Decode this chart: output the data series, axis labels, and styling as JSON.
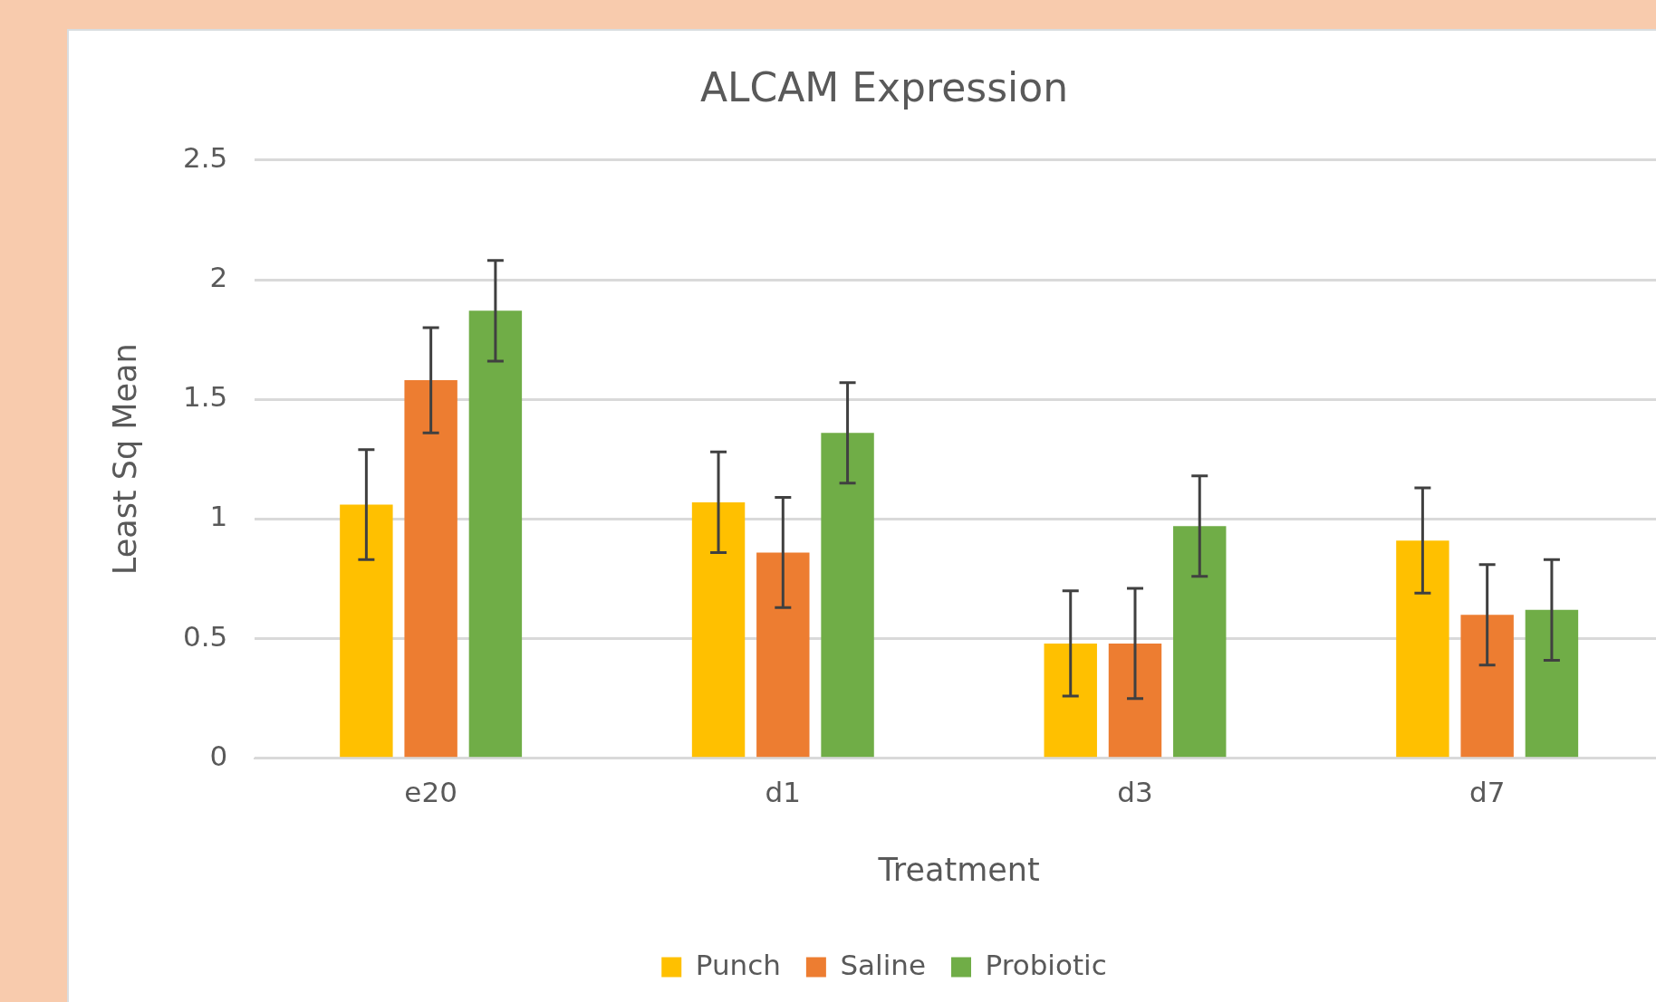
{
  "chart_data": {
    "type": "bar",
    "title": "ALCAM Expression",
    "xlabel": "Treatment",
    "ylabel": "Least Sq Mean",
    "categories": [
      "e20",
      "d1",
      "d3",
      "d7"
    ],
    "series": [
      {
        "name": "Punch",
        "color": "#ffc000",
        "values": [
          1.06,
          1.07,
          0.48,
          0.91
        ],
        "errors": [
          0.23,
          0.21,
          0.22,
          0.22
        ]
      },
      {
        "name": "Saline",
        "color": "#ed7d31",
        "values": [
          1.58,
          0.86,
          0.48,
          0.6
        ],
        "errors": [
          0.22,
          0.23,
          0.23,
          0.21
        ]
      },
      {
        "name": "Probiotic",
        "color": "#70ad47",
        "values": [
          1.87,
          1.36,
          0.97,
          0.62
        ],
        "errors": [
          0.21,
          0.21,
          0.21,
          0.21
        ]
      }
    ],
    "ylim": [
      0,
      2.5
    ],
    "yticks": [
      0,
      0.5,
      1,
      1.5,
      2,
      2.5
    ],
    "grid": "y",
    "legend": "bottom"
  }
}
